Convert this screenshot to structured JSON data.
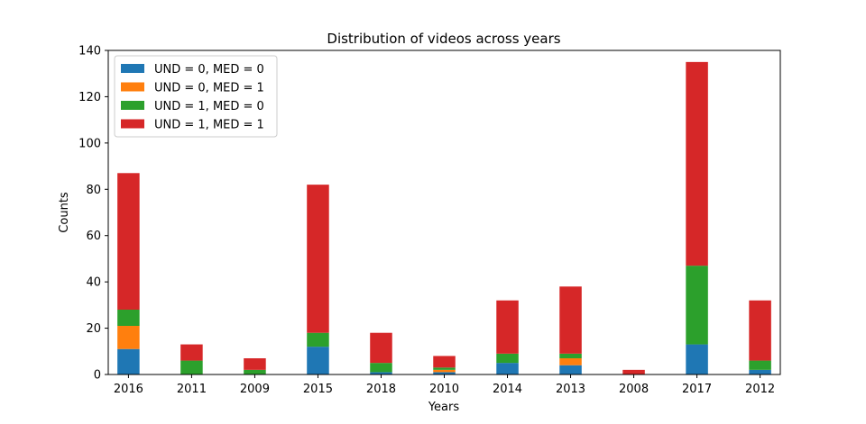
{
  "chart_data": {
    "type": "bar",
    "stacked": true,
    "title": "Distribution of videos across years",
    "xlabel": "Years",
    "ylabel": "Counts",
    "ylim": [
      0,
      140
    ],
    "yticks": [
      0,
      20,
      40,
      60,
      80,
      100,
      120,
      140
    ],
    "grid": false,
    "legend_position": "top-left",
    "categories": [
      "2016",
      "2011",
      "2009",
      "2015",
      "2018",
      "2010",
      "2014",
      "2013",
      "2008",
      "2017",
      "2012"
    ],
    "series": [
      {
        "name": "UND = 0, MED = 0",
        "color": "#1f77b4",
        "values": [
          11,
          0,
          0,
          12,
          1,
          1,
          5,
          4,
          0,
          13,
          2
        ]
      },
      {
        "name": "UND = 0, MED = 1",
        "color": "#ff7f0e",
        "values": [
          10,
          0,
          0,
          0,
          0,
          1,
          0,
          3,
          0,
          0,
          0
        ]
      },
      {
        "name": "UND = 1, MED = 0",
        "color": "#2ca02c",
        "values": [
          7,
          6,
          2,
          6,
          4,
          1,
          4,
          2,
          0,
          34,
          4
        ]
      },
      {
        "name": "UND = 1, MED = 1",
        "color": "#d62728",
        "values": [
          59,
          7,
          5,
          64,
          13,
          5,
          23,
          29,
          2,
          88,
          26
        ]
      }
    ]
  }
}
